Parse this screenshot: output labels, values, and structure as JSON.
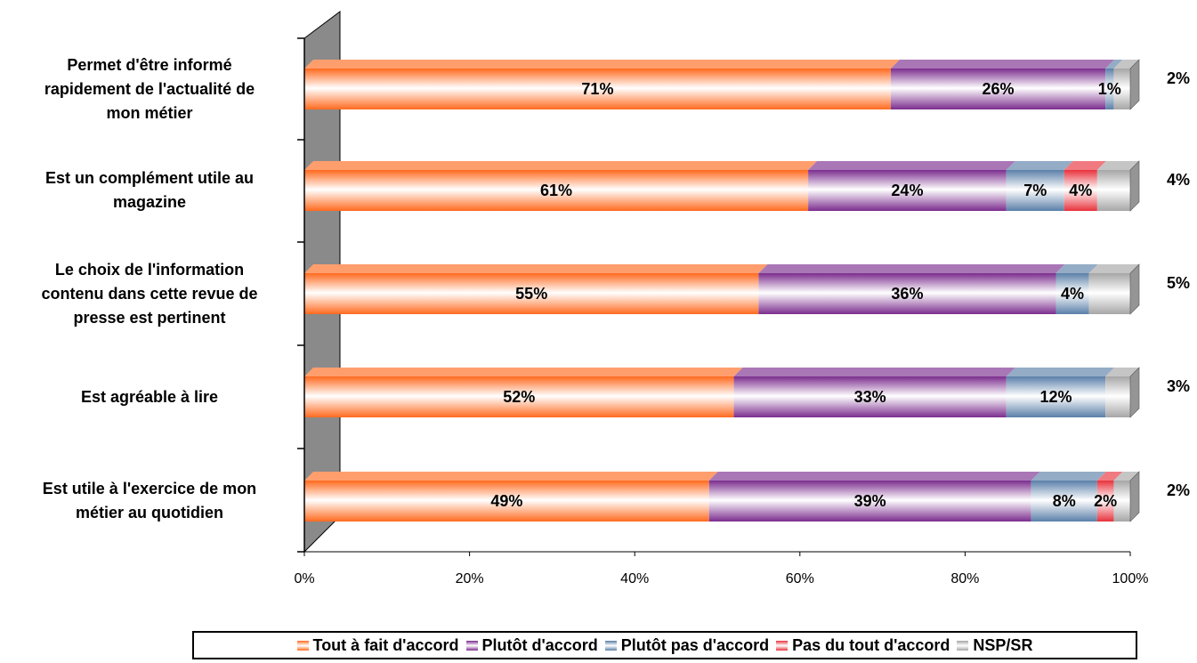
{
  "chart_data": {
    "type": "bar",
    "orientation": "horizontal",
    "stacked": true,
    "percent_stacked": true,
    "three_d": true,
    "categories": [
      "Permet d'être informé rapidement de l'actualité de mon métier",
      "Est un complément utile au magazine",
      "Le choix de l'information contenu dans cette revue de presse est pertinent",
      "Est agréable à lire",
      "Est utile à l'exercice de mon métier au quotidien"
    ],
    "category_lines": [
      [
        "Permet d'être informé",
        "rapidement de l'actualité de",
        "mon métier"
      ],
      [
        "Est un complément utile au",
        "magazine"
      ],
      [
        "Le choix de l'information",
        "contenu dans cette revue de",
        "presse est pertinent"
      ],
      [
        "Est agréable à lire"
      ],
      [
        "Est utile à l'exercice de mon",
        "métier au quotidien"
      ]
    ],
    "series": [
      {
        "name": "Tout à fait d'accord",
        "color": "#ff6a1f",
        "values": [
          71,
          61,
          55,
          52,
          49
        ]
      },
      {
        "name": "Plutôt d'accord",
        "color": "#7b2d8e",
        "values": [
          26,
          24,
          36,
          33,
          39
        ]
      },
      {
        "name": "Plutôt pas d'accord",
        "color": "#5a7fa8",
        "values": [
          1,
          7,
          4,
          12,
          8
        ]
      },
      {
        "name": "Pas du tout d'accord",
        "color": "#e8323c",
        "values": [
          0,
          4,
          0,
          0,
          2
        ]
      },
      {
        "name": "NSP/SR",
        "color": "#a6a6a6",
        "values": [
          2,
          4,
          5,
          3,
          2
        ]
      }
    ],
    "data_labels": [
      [
        "71%",
        "26%",
        "1%",
        "",
        "2%"
      ],
      [
        "61%",
        "24%",
        "7%",
        "4%",
        "4%"
      ],
      [
        "55%",
        "36%",
        "4%",
        "",
        "5%"
      ],
      [
        "52%",
        "33%",
        "12%",
        "",
        "3%"
      ],
      [
        "49%",
        "39%",
        "8%",
        "2%",
        "2%"
      ]
    ],
    "x_ticks": [
      "0%",
      "20%",
      "40%",
      "60%",
      "80%",
      "100%"
    ],
    "xlim": [
      0,
      100
    ],
    "xlabel": "",
    "ylabel": "",
    "title": "",
    "grid": false,
    "legend_position": "bottom"
  }
}
